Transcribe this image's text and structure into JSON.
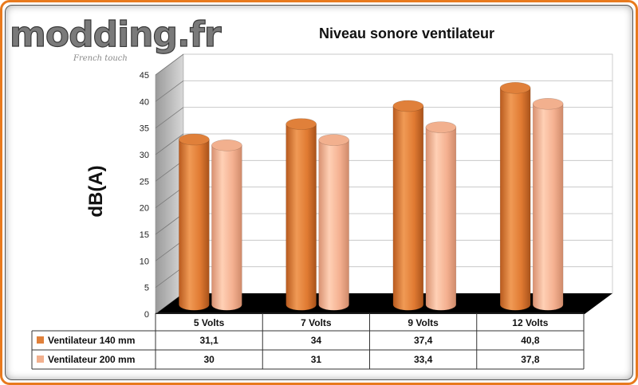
{
  "logo": {
    "text": "modding.fr",
    "tagline": "French touch"
  },
  "chart_data": {
    "type": "bar",
    "title": "Niveau sonore ventilateur",
    "ylabel": "dB(A)",
    "ylim": [
      0,
      45
    ],
    "yticks": [
      0,
      5,
      10,
      15,
      20,
      25,
      30,
      35,
      40,
      45
    ],
    "grid": true,
    "categories": [
      "5 Volts",
      "7 Volts",
      "9 Volts",
      "12 Volts"
    ],
    "series": [
      {
        "name": "Ventilateur 140 mm",
        "values": [
          31.1,
          34,
          37.4,
          40.8
        ],
        "labels": [
          "31,1",
          "34",
          "37,4",
          "40,8"
        ],
        "color": "#e0803a"
      },
      {
        "name": "Ventilateur 200 mm",
        "values": [
          30,
          31,
          33.4,
          37.8
        ],
        "labels": [
          "30",
          "31",
          "33,4",
          "37,8"
        ],
        "color": "#f2b08e"
      }
    ]
  }
}
